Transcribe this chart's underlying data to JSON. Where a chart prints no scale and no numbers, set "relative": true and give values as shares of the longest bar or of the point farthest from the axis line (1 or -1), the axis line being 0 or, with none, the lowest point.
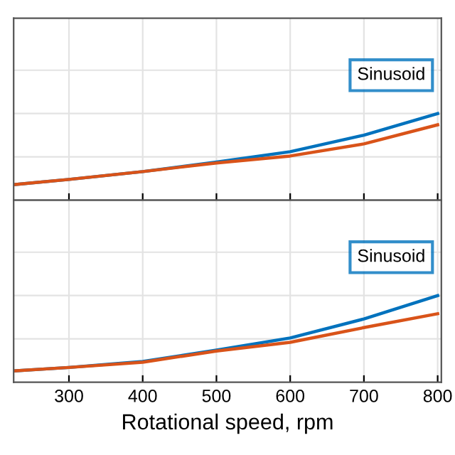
{
  "chart_data": [
    {
      "type": "line",
      "relative": true,
      "x": [
        225,
        300,
        400,
        500,
        600,
        700,
        800
      ],
      "xlim": [
        225,
        805
      ],
      "xticks": [
        300,
        400,
        500,
        600,
        700,
        800
      ],
      "tick_labels": false,
      "grid": true,
      "legend": "top right",
      "series": [
        {
          "name": "Sinusoid",
          "color": "#0072bd",
          "values": [
            0.18,
            0.24,
            0.33,
            0.44,
            0.56,
            0.75,
            1
          ]
        },
        {
          "color": "#d95319",
          "values": [
            0.18,
            0.24,
            0.33,
            0.43,
            0.51,
            0.65,
            0.87
          ]
        }
      ]
    },
    {
      "type": "line",
      "relative": true,
      "x": [
        225,
        300,
        400,
        500,
        600,
        700,
        800
      ],
      "xlim": [
        225,
        805
      ],
      "xticks": [
        300,
        400,
        500,
        600,
        700,
        800
      ],
      "tick_labels": "x",
      "xlabel": "Rotational speed, rpm",
      "grid": true,
      "legend": "top right",
      "series": [
        {
          "name": "Sinusoid",
          "color": "#0072bd",
          "values": [
            0.13,
            0.17,
            0.24,
            0.37,
            0.51,
            0.73,
            1
          ]
        },
        {
          "color": "#d95319",
          "values": [
            0.13,
            0.17,
            0.23,
            0.36,
            0.46,
            0.63,
            0.79
          ]
        }
      ]
    }
  ]
}
